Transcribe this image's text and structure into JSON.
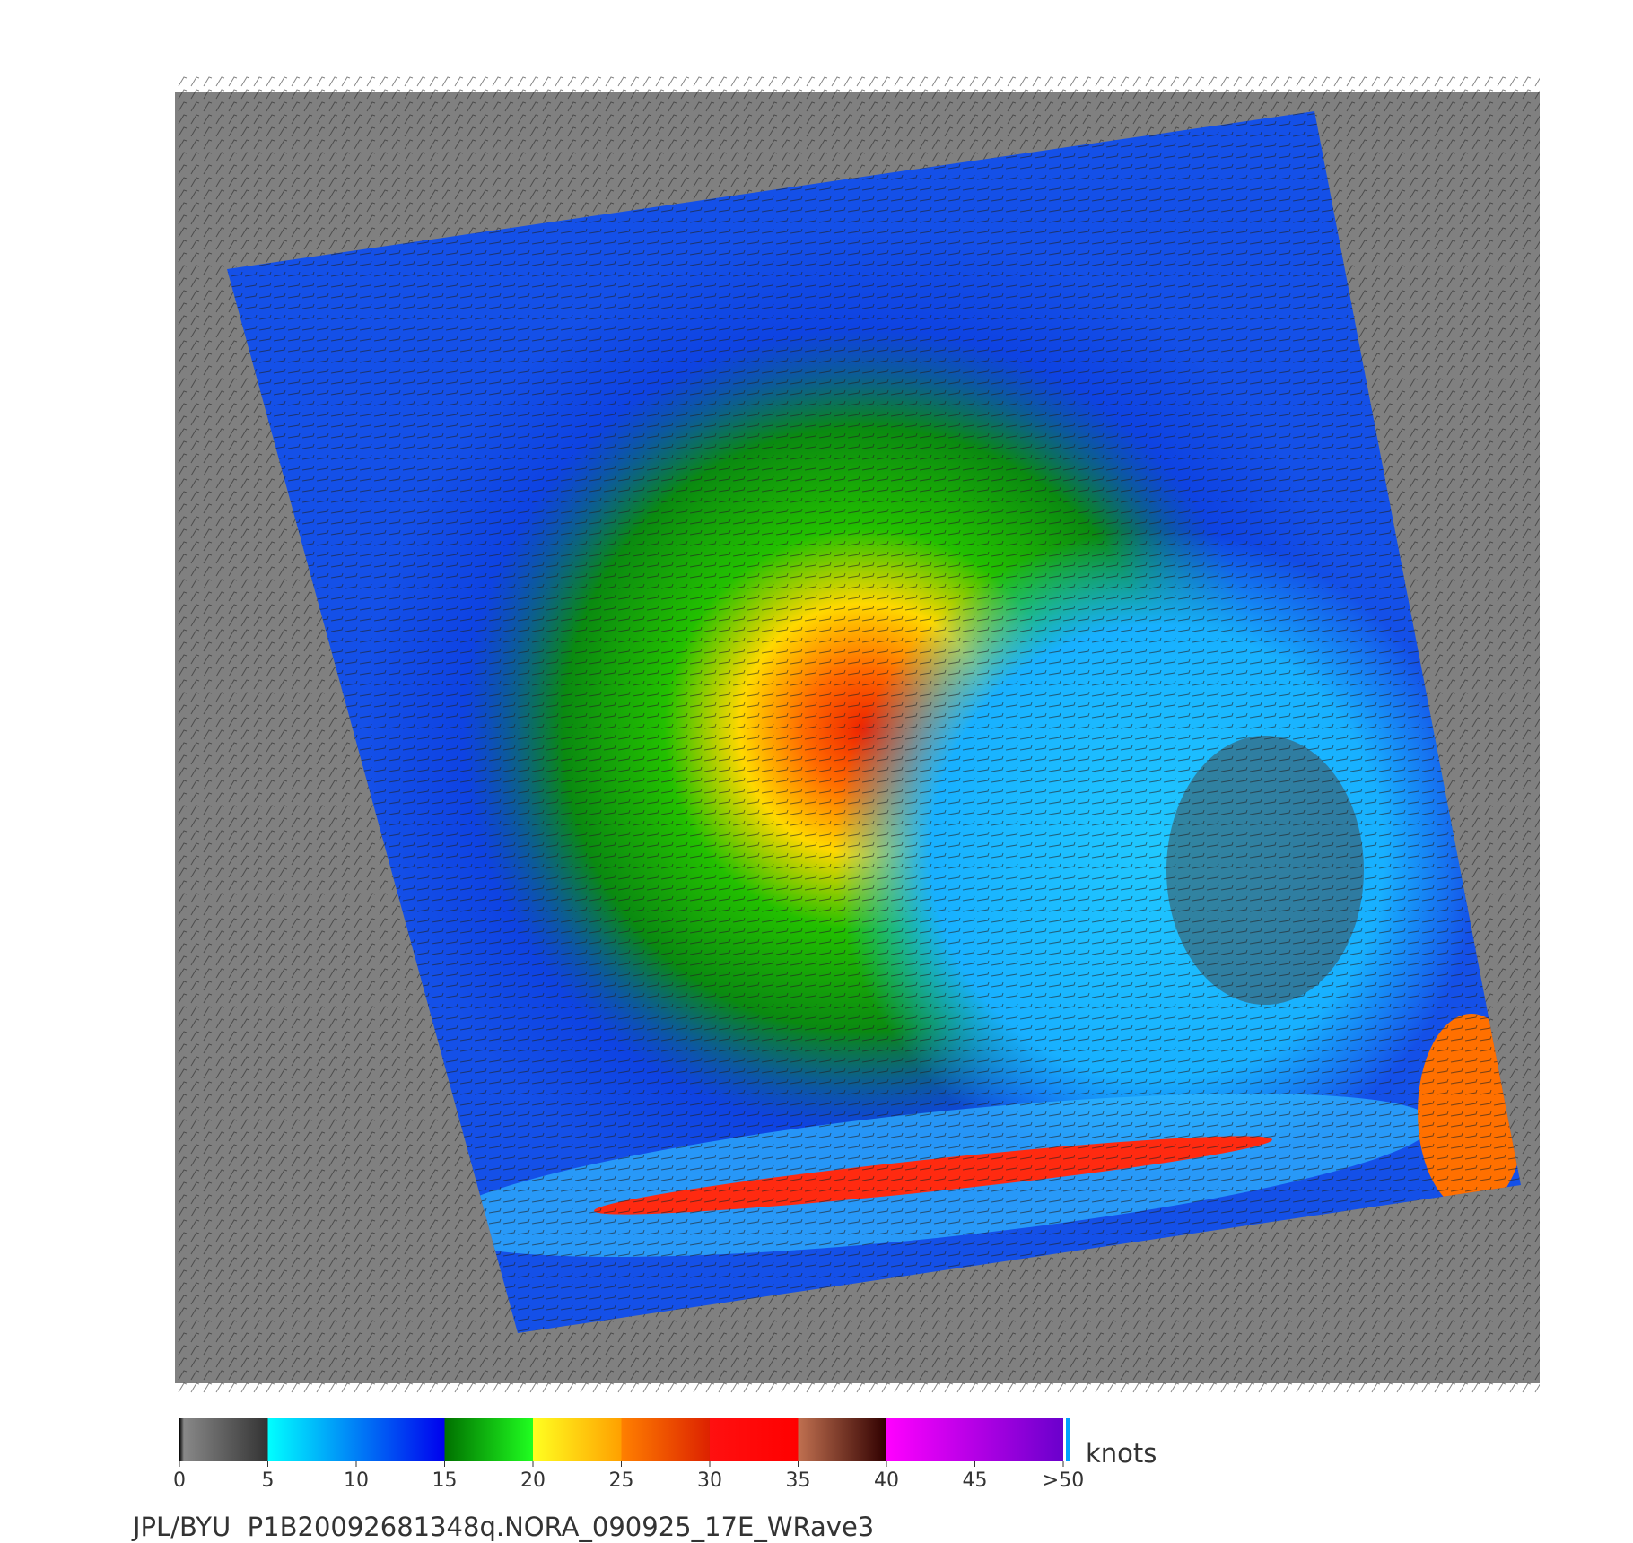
{
  "colorbar": {
    "range": [
      0,
      50
    ],
    "ticks": [
      0,
      5,
      10,
      15,
      20,
      25,
      30,
      35,
      40,
      45,
      {
        "value": 50,
        "label": ">50"
      }
    ],
    "unit": "knots"
  },
  "footer": "JPL/BYU  P1B20092681348q.NORA_090925_17E_WRave3"
}
